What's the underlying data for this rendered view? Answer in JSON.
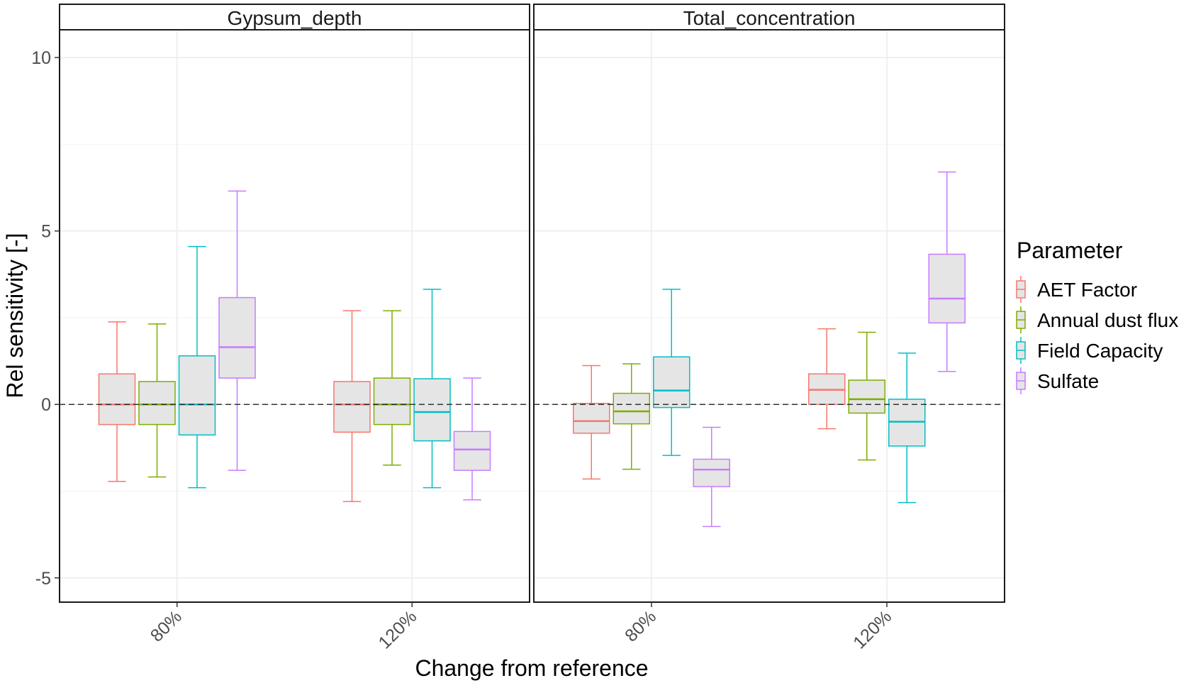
{
  "chart_data": {
    "type": "box",
    "xlabel": "Change from reference",
    "ylabel": "Rel sensitivity [-]",
    "ylim": [
      -5.7,
      10.8
    ],
    "yticks": [
      -5,
      0,
      5,
      10
    ],
    "ytick_labels": [
      "-5",
      "0",
      "5",
      "10"
    ],
    "reference_line": 0,
    "categories": [
      "80%",
      "120%"
    ],
    "legend": {
      "title": "Parameter",
      "position": "right",
      "entries": [
        {
          "name": "AET Factor",
          "color": "#F8766D"
        },
        {
          "name": "Annual dust flux",
          "color": "#7CAE00"
        },
        {
          "name": "Field Capacity",
          "color": "#00BFC4"
        },
        {
          "name": "Sulfate",
          "color": "#C77CFF"
        }
      ]
    },
    "box_fill": "#e5e5e5",
    "panels": [
      {
        "title": "Gypsum_depth",
        "groups": [
          {
            "category": "80%",
            "boxes": [
              {
                "series": "AET Factor",
                "min": -2.22,
                "q1": -0.58,
                "median": 0.0,
                "q3": 0.88,
                "max": 2.38
              },
              {
                "series": "Annual dust flux",
                "min": -2.09,
                "q1": -0.58,
                "median": 0.0,
                "q3": 0.66,
                "max": 2.32
              },
              {
                "series": "Field Capacity",
                "min": -2.4,
                "q1": -0.88,
                "median": 0.0,
                "q3": 1.4,
                "max": 4.55
              },
              {
                "series": "Sulfate",
                "min": -1.9,
                "q1": 0.76,
                "median": 1.65,
                "q3": 3.08,
                "max": 6.15
              }
            ]
          },
          {
            "category": "120%",
            "boxes": [
              {
                "series": "AET Factor",
                "min": -2.8,
                "q1": -0.8,
                "median": 0.0,
                "q3": 0.66,
                "max": 2.7
              },
              {
                "series": "Annual dust flux",
                "min": -1.75,
                "q1": -0.58,
                "median": 0.0,
                "q3": 0.76,
                "max": 2.7
              },
              {
                "series": "Field Capacity",
                "min": -2.4,
                "q1": -1.05,
                "median": -0.22,
                "q3": 0.74,
                "max": 3.32
              },
              {
                "series": "Sulfate",
                "min": -2.75,
                "q1": -1.9,
                "median": -1.3,
                "q3": -0.78,
                "max": 0.76
              }
            ]
          }
        ]
      },
      {
        "title": "Total_concentration",
        "groups": [
          {
            "category": "80%",
            "boxes": [
              {
                "series": "AET Factor",
                "min": -2.15,
                "q1": -0.83,
                "median": -0.48,
                "q3": 0.03,
                "max": 1.12
              },
              {
                "series": "Annual dust flux",
                "min": -1.87,
                "q1": -0.56,
                "median": -0.2,
                "q3": 0.32,
                "max": 1.17
              },
              {
                "series": "Field Capacity",
                "min": -1.47,
                "q1": -0.09,
                "median": 0.4,
                "q3": 1.37,
                "max": 3.32
              },
              {
                "series": "Sulfate",
                "min": -3.52,
                "q1": -2.37,
                "median": -1.88,
                "q3": -1.58,
                "max": -0.66
              }
            ]
          },
          {
            "category": "120%",
            "boxes": [
              {
                "series": "AET Factor",
                "min": -0.7,
                "q1": 0.0,
                "median": 0.42,
                "q3": 0.88,
                "max": 2.18
              },
              {
                "series": "Annual dust flux",
                "min": -1.6,
                "q1": -0.25,
                "median": 0.15,
                "q3": 0.7,
                "max": 2.08
              },
              {
                "series": "Field Capacity",
                "min": -2.83,
                "q1": -1.2,
                "median": -0.5,
                "q3": 0.15,
                "max": 1.48
              },
              {
                "series": "Sulfate",
                "min": 0.95,
                "q1": 2.35,
                "median": 3.05,
                "q3": 4.33,
                "max": 6.7
              }
            ]
          }
        ]
      }
    ]
  }
}
